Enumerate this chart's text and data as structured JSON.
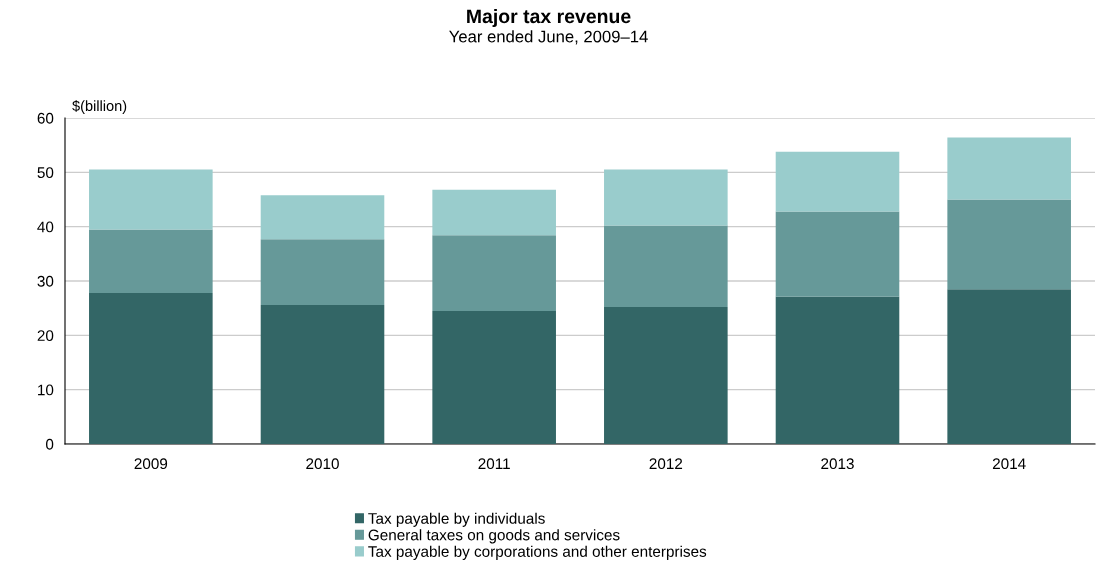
{
  "chart_data": {
    "type": "bar",
    "title": "Major tax revenue",
    "subtitle": "Year ended June, 2009–14",
    "ylabel": "$(billion)",
    "categories": [
      "2009",
      "2010",
      "2011",
      "2012",
      "2013",
      "2014"
    ],
    "stacked": true,
    "series": [
      {
        "name": "Tax payable by individuals",
        "color": "#336666",
        "values": [
          27.8,
          25.6,
          24.5,
          25.2,
          27.1,
          28.5
        ]
      },
      {
        "name": "General taxes on goods and services",
        "color": "#669999",
        "values": [
          11.7,
          12.1,
          13.9,
          15.0,
          15.7,
          16.5
        ]
      },
      {
        "name": "Tax payable by corporations and other enterprises",
        "color": "#99cccc",
        "values": [
          11.0,
          8.1,
          8.4,
          10.3,
          11.0,
          11.4
        ]
      }
    ],
    "ylim": [
      0,
      60
    ],
    "yticks": [
      0,
      10,
      20,
      30,
      40,
      50,
      60
    ],
    "grid": "y",
    "legend": "bottom"
  }
}
